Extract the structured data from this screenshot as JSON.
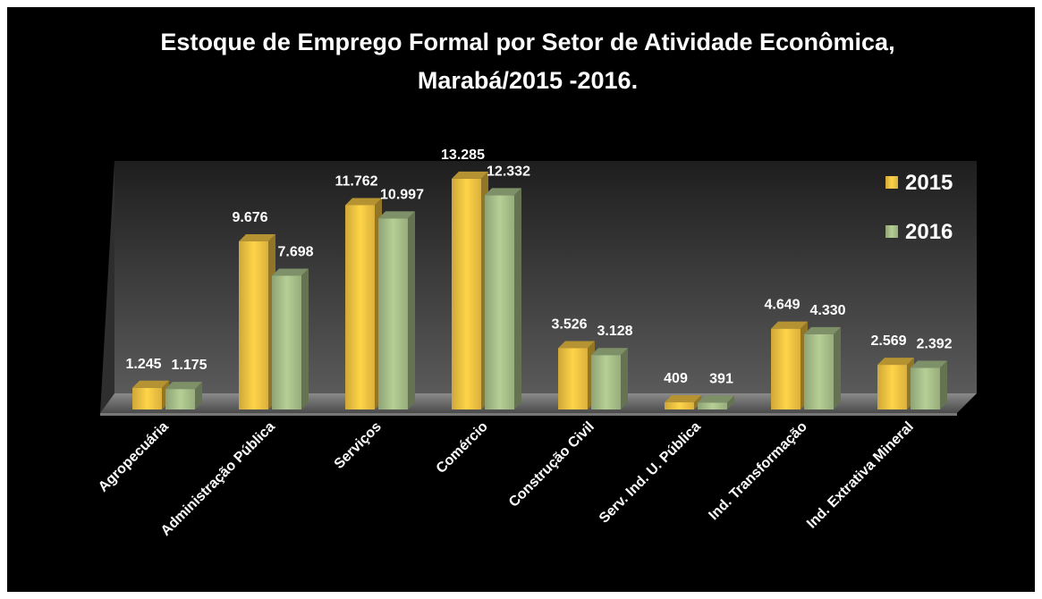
{
  "chart_data": {
    "type": "bar",
    "title": [
      "Estoque de Emprego Formal por Setor de Atividade Econômica,",
      "Marabá/2015  -2016."
    ],
    "categories": [
      "Agropecuária",
      "Administração Pública",
      "Serviços",
      "Comércio",
      "Construção Civil",
      "Serv. Ind. U. Pública",
      "Ind. Transformação",
      "Ind. Extrativa Mineral"
    ],
    "series": [
      {
        "name": "2015",
        "color": "#f2c443",
        "values": [
          1245,
          9676,
          11762,
          13285,
          3526,
          409,
          4649,
          2569
        ],
        "value_labels": [
          "1.245",
          "9.676",
          "11.762",
          "13.285",
          "3.526",
          "409",
          "4.649",
          "2.569"
        ]
      },
      {
        "name": "2016",
        "color": "#a8c08a",
        "values": [
          1175,
          7698,
          10997,
          12332,
          3128,
          391,
          4330,
          2392
        ],
        "value_labels": [
          "1.175",
          "7.698",
          "10.997",
          "12.332",
          "3.128",
          "391",
          "4.330",
          "2.392"
        ]
      }
    ],
    "ylim": [
      0,
      14000
    ],
    "legend": "top-right"
  }
}
